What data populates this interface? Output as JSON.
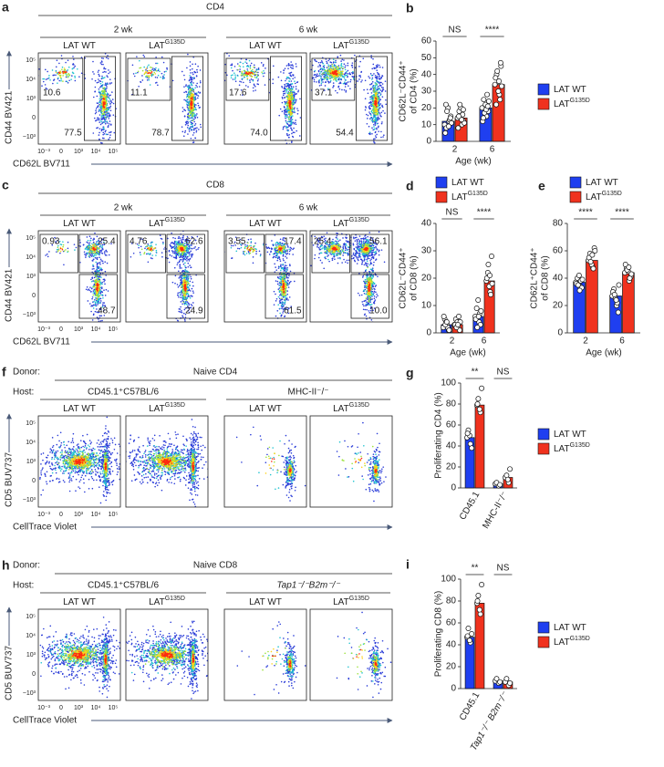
{
  "panels": [
    {
      "letter": "a",
      "title": "CD4",
      "groups": [
        "2 wk",
        "6 wk"
      ],
      "ylabel": "CD44 BV421",
      "xlabel": "CD62L BV711",
      "plots": [
        {
          "text": "LAT WT",
          "gates": [
            "10.6",
            "77.5"
          ]
        },
        {
          "text": "LAT",
          "sup": "G135D",
          "gates": [
            "11.1",
            "78.7"
          ]
        },
        {
          "text": "LAT WT",
          "gates": [
            "17.6",
            "74.0"
          ]
        },
        {
          "text": "LAT",
          "sup": "G135D",
          "gates": [
            "37.1",
            "54.4"
          ]
        }
      ]
    },
    {
      "letter": "c",
      "title": "CD8",
      "groups": [
        "2 wk",
        "6 wk"
      ],
      "ylabel": "CD44 BV421",
      "xlabel": "CD62L BV711",
      "plots": [
        {
          "text": "LAT WT",
          "gates": [
            "0.93",
            "25.4",
            "48.7"
          ]
        },
        {
          "text": "LAT",
          "sup": "G135D",
          "gates": [
            "4.76",
            "62.6",
            "24.9"
          ]
        },
        {
          "text": "LAT WT",
          "gates": [
            "3.55",
            "17.4",
            "61.5"
          ]
        },
        {
          "text": "LAT",
          "sup": "G135D",
          "gates": [
            "25.4",
            "56.1",
            "10.0"
          ]
        }
      ]
    },
    {
      "letter": "f",
      "donor_label": "Donor:",
      "host_label": "Host:",
      "title": "Naive CD4",
      "groups": [
        "CD45.1⁺C57BL/6",
        "MHC-II⁻/⁻"
      ],
      "ylabel": "CD5 BUV737",
      "xlabel": "CellTrace Violet",
      "plots": [
        {
          "text": "LAT WT"
        },
        {
          "text": "LAT",
          "sup": "G135D"
        },
        {
          "text": "LAT WT"
        },
        {
          "text": "LAT",
          "sup": "G135D"
        }
      ]
    },
    {
      "letter": "h",
      "donor_label": "Donor:",
      "host_label": "Host:",
      "title": "Naive CD8",
      "groups": [
        "CD45.1⁺C57BL/6",
        "Tap1⁻/⁻B2m⁻/⁻"
      ],
      "ylabel": "CD5 BUV737",
      "xlabel": "CellTrace Violet",
      "plots": [
        {
          "text": "LAT WT"
        },
        {
          "text": "LAT",
          "sup": "G135D"
        },
        {
          "text": "LAT WT"
        },
        {
          "text": "LAT",
          "sup": "G135D"
        }
      ]
    }
  ],
  "flow_axis": {
    "x_ticks": [
      "10⁻³",
      "0",
      "10³",
      "10⁴",
      "10⁵"
    ],
    "y_ticks": [
      "10⁵",
      "10⁴",
      "10³",
      "0",
      "−10³"
    ]
  },
  "chart_data": [
    {
      "type": "bar",
      "letter": "b",
      "ylabel": [
        "CD62L⁻CD44⁺",
        "of CD4 (%)"
      ],
      "xlabel": "Age (wk)",
      "categories": [
        "2",
        "6"
      ],
      "ylim": [
        0,
        60
      ],
      "yticks": [
        0,
        10,
        20,
        30,
        40,
        50,
        60
      ],
      "legend": "right",
      "significance": [
        "NS",
        "****"
      ],
      "series": [
        {
          "name": "LAT WT",
          "color": "#1f3ff0",
          "values": [
            12,
            20
          ],
          "points": [
            [
              10,
              12,
              8,
              15,
              20,
              5,
              13,
              18,
              11,
              9,
              22,
              14
            ],
            [
              20,
              15,
              25,
              18,
              22,
              12,
              28,
              17,
              24,
              19,
              14,
              21
            ]
          ]
        },
        {
          "name": "LAT",
          "name_sup": "G135D",
          "color": "#f0321e",
          "values": [
            14,
            34
          ],
          "points": [
            [
              14,
              10,
              18,
              12,
              20,
              8,
              16,
              22,
              11,
              13,
              15,
              19
            ],
            [
              34,
              28,
              40,
              45,
              30,
              38,
              25,
              42,
              33,
              36,
              22,
              47
            ]
          ]
        }
      ]
    },
    {
      "type": "bar",
      "letter": "d",
      "ylabel": [
        "CD62L⁻CD44⁺",
        "of CD8 (%)"
      ],
      "xlabel": "Age (wk)",
      "categories": [
        "2",
        "6"
      ],
      "ylim": [
        0,
        40
      ],
      "yticks": [
        0,
        10,
        20,
        30,
        40
      ],
      "legend": "top",
      "significance": [
        "NS",
        "****"
      ],
      "series": [
        {
          "name": "LAT WT",
          "color": "#1f3ff0",
          "values": [
            3,
            6
          ],
          "points": [
            [
              2,
              3,
              5,
              1,
              4,
              6,
              2,
              3,
              1,
              4
            ],
            [
              6,
              4,
              9,
              3,
              12,
              5,
              7,
              2,
              8,
              6
            ]
          ]
        },
        {
          "name": "LAT",
          "name_sup": "G135D",
          "color": "#f0321e",
          "values": [
            3,
            19
          ],
          "points": [
            [
              3,
              2,
              5,
              1,
              4,
              3,
              6,
              2,
              4,
              3
            ],
            [
              19,
              15,
              22,
              28,
              17,
              20,
              14,
              25,
              18,
              21
            ]
          ]
        }
      ]
    },
    {
      "type": "bar",
      "letter": "e",
      "ylabel": [
        "CD62L⁺CD44⁺",
        "of CD8 (%)"
      ],
      "xlabel": "Age (wk)",
      "categories": [
        "2",
        "6"
      ],
      "ylim": [
        0,
        80
      ],
      "yticks": [
        0,
        20,
        40,
        60,
        80
      ],
      "legend": "top",
      "significance": [
        "****",
        "****"
      ],
      "series": [
        {
          "name": "LAT WT",
          "color": "#1f3ff0",
          "values": [
            37,
            27
          ],
          "points": [
            [
              37,
              34,
              40,
              33,
              42,
              36,
              38,
              35,
              39,
              31
            ],
            [
              27,
              20,
              32,
              15,
              25,
              30,
              22,
              28,
              35,
              24
            ]
          ]
        },
        {
          "name": "LAT",
          "name_sup": "G135D",
          "color": "#f0321e",
          "values": [
            53,
            44
          ],
          "points": [
            [
              53,
              48,
              58,
              62,
              50,
              55,
              47,
              52,
              60,
              57
            ],
            [
              44,
              38,
              47,
              41,
              45,
              50,
              40,
              46,
              43,
              48
            ]
          ]
        }
      ]
    },
    {
      "type": "bar",
      "letter": "g",
      "ylabel": [
        "Proliferating CD4 (%)"
      ],
      "categories": [
        "CD45.1",
        "MHC-II⁻/⁻"
      ],
      "ylim": [
        0,
        100
      ],
      "yticks": [
        0,
        20,
        40,
        60,
        80,
        100
      ],
      "legend": "right",
      "significance": [
        "**",
        "NS"
      ],
      "series": [
        {
          "name": "LAT WT",
          "color": "#1f3ff0",
          "values": [
            48,
            4
          ],
          "points": [
            [
              48,
              42,
              55,
              38,
              50,
              52
            ],
            [
              4,
              2,
              5,
              3
            ]
          ]
        },
        {
          "name": "LAT",
          "name_sup": "G135D",
          "color": "#f0321e",
          "values": [
            79,
            10
          ],
          "points": [
            [
              79,
              72,
              85,
              95,
              75,
              80
            ],
            [
              10,
              5,
              12,
              18,
              8
            ]
          ]
        }
      ]
    },
    {
      "type": "bar",
      "letter": "i",
      "ylabel": [
        "Proliferating CD8 (%)"
      ],
      "categories": [
        "CD45.1",
        "Tap1⁻/⁻ B2m⁻/⁻"
      ],
      "ylim": [
        0,
        100
      ],
      "yticks": [
        0,
        20,
        40,
        60,
        80,
        100
      ],
      "legend": "right",
      "significance": [
        "**",
        "NS"
      ],
      "series": [
        {
          "name": "LAT WT",
          "color": "#1f3ff0",
          "values": [
            47,
            7
          ],
          "points": [
            [
              47,
              42,
              55,
              50,
              44,
              48
            ],
            [
              7,
              5,
              9,
              6
            ]
          ]
        },
        {
          "name": "LAT",
          "name_sup": "G135D",
          "color": "#f0321e",
          "values": [
            78,
            6
          ],
          "points": [
            [
              78,
              68,
              85,
              95,
              72,
              80
            ],
            [
              6,
              3,
              9,
              5
            ]
          ]
        }
      ]
    }
  ]
}
